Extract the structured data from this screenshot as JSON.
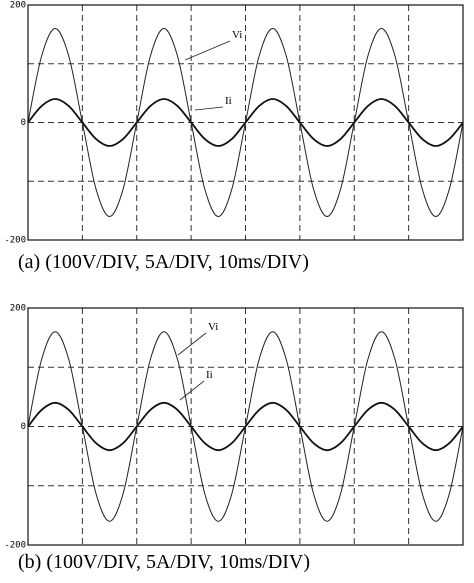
{
  "chart_data": [
    {
      "type": "line",
      "caption": "(a)  (100V/DIV, 5A/DIV, 10ms/DIV)",
      "x": [
        0,
        2.5,
        5,
        7.5,
        10,
        12.5,
        15,
        17.5,
        20,
        22.5,
        25,
        27.5,
        30,
        32.5,
        35,
        37.5,
        40,
        42.5,
        45,
        47.5,
        50,
        52.5,
        55,
        57.5,
        60,
        62.5,
        65,
        67.5,
        70,
        72.5,
        75,
        77.5,
        80
      ],
      "xlim": [
        0,
        80
      ],
      "ylim": [
        -200,
        200
      ],
      "yticks": [
        200,
        0,
        -200
      ],
      "grid": true,
      "series": [
        {
          "name": "Vi",
          "color": "#222222",
          "values": [
            0,
            113,
            160,
            113,
            0,
            -113,
            -160,
            -113,
            0,
            113,
            160,
            113,
            0,
            -113,
            -160,
            -113,
            0,
            113,
            160,
            113,
            0,
            -113,
            -160,
            -113,
            0,
            113,
            160,
            113,
            0,
            -113,
            -160,
            -113,
            0
          ]
        },
        {
          "name": "Ii",
          "color": "#111111",
          "values": [
            0,
            28,
            40,
            28,
            0,
            -28,
            -40,
            -28,
            0,
            28,
            40,
            28,
            0,
            -28,
            -40,
            -28,
            0,
            28,
            40,
            28,
            0,
            -28,
            -40,
            -28,
            0,
            28,
            40,
            28,
            0,
            -28,
            -40,
            -28,
            0
          ]
        }
      ]
    },
    {
      "type": "line",
      "caption": "(b)  (100V/DIV, 5A/DIV, 10ms/DIV)",
      "x": [
        0,
        2.5,
        5,
        7.5,
        10,
        12.5,
        15,
        17.5,
        20,
        22.5,
        25,
        27.5,
        30,
        32.5,
        35,
        37.5,
        40,
        42.5,
        45,
        47.5,
        50,
        52.5,
        55,
        57.5,
        60,
        62.5,
        65,
        67.5,
        70,
        72.5,
        75,
        77.5,
        80
      ],
      "xlim": [
        0,
        80
      ],
      "ylim": [
        -200,
        200
      ],
      "yticks": [
        200,
        0,
        -200
      ],
      "grid": true,
      "series": [
        {
          "name": "Vi",
          "color": "#222222",
          "values": [
            0,
            113,
            160,
            113,
            0,
            -113,
            -160,
            -113,
            0,
            113,
            160,
            113,
            0,
            -113,
            -160,
            -113,
            0,
            113,
            160,
            113,
            0,
            -113,
            -160,
            -113,
            0,
            113,
            160,
            113,
            0,
            -113,
            -160,
            -113,
            0
          ]
        },
        {
          "name": "Ii",
          "color": "#111111",
          "values": [
            0,
            28,
            40,
            28,
            0,
            -28,
            -40,
            -28,
            0,
            28,
            40,
            28,
            0,
            -28,
            -40,
            -28,
            0,
            28,
            40,
            28,
            0,
            -28,
            -40,
            -28,
            0,
            28,
            40,
            28,
            0,
            -28,
            -40,
            -28,
            0
          ]
        }
      ]
    }
  ]
}
